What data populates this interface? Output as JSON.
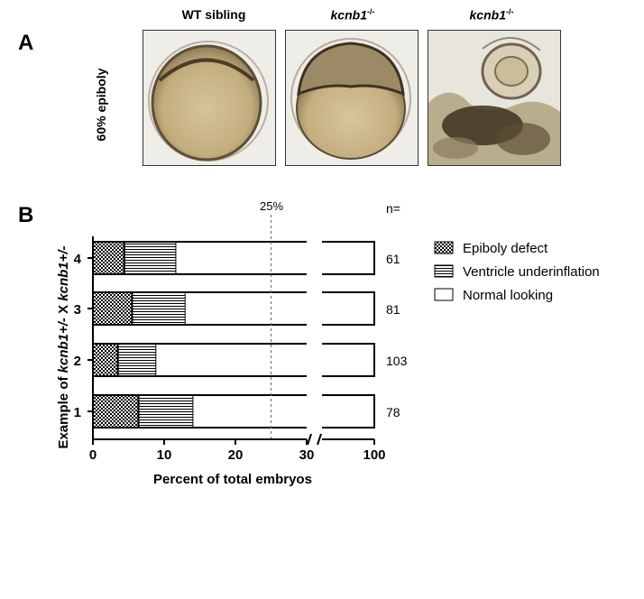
{
  "panel_a": {
    "letter": "A",
    "stage_label": "60% epiboly",
    "columns": [
      {
        "name": "WT sibling",
        "superscript": ""
      },
      {
        "name": "kcnb1",
        "superscript": "-/-"
      },
      {
        "name": "kcnb1",
        "superscript": "-/-"
      }
    ]
  },
  "panel_b": {
    "letter": "B",
    "n_header": "n=",
    "ref_line_label": "25%",
    "legend": [
      {
        "label": "Epiboly defect",
        "pattern": "checker"
      },
      {
        "label": "Ventricle underinflation",
        "pattern": "hlines"
      },
      {
        "label": "Normal looking",
        "pattern": "blank"
      }
    ]
  },
  "chart_data": {
    "type": "bar",
    "orientation": "horizontal",
    "stacked": true,
    "categories": [
      "4",
      "3",
      "2",
      "1"
    ],
    "series": [
      {
        "name": "Epiboly defect",
        "values": [
          4.4,
          5.5,
          3.5,
          6.4
        ]
      },
      {
        "name": "Ventricle underinflation",
        "values": [
          7.3,
          7.5,
          5.4,
          7.7
        ]
      },
      {
        "name": "Normal looking",
        "values": [
          88.3,
          87.0,
          91.1,
          85.9
        ]
      }
    ],
    "n_values": [
      "61",
      "81",
      "103",
      "78"
    ],
    "xlabel": "Percent of total embryos",
    "ylabel_parts": [
      "Example of ",
      "kcnb1+/-",
      " X ",
      "kcnb1+/-"
    ],
    "x_ticks": [
      "0",
      "10",
      "20",
      "30",
      "100"
    ],
    "x_axis_break": [
      30,
      100
    ],
    "reference_line": 25,
    "legend_position": "right"
  }
}
